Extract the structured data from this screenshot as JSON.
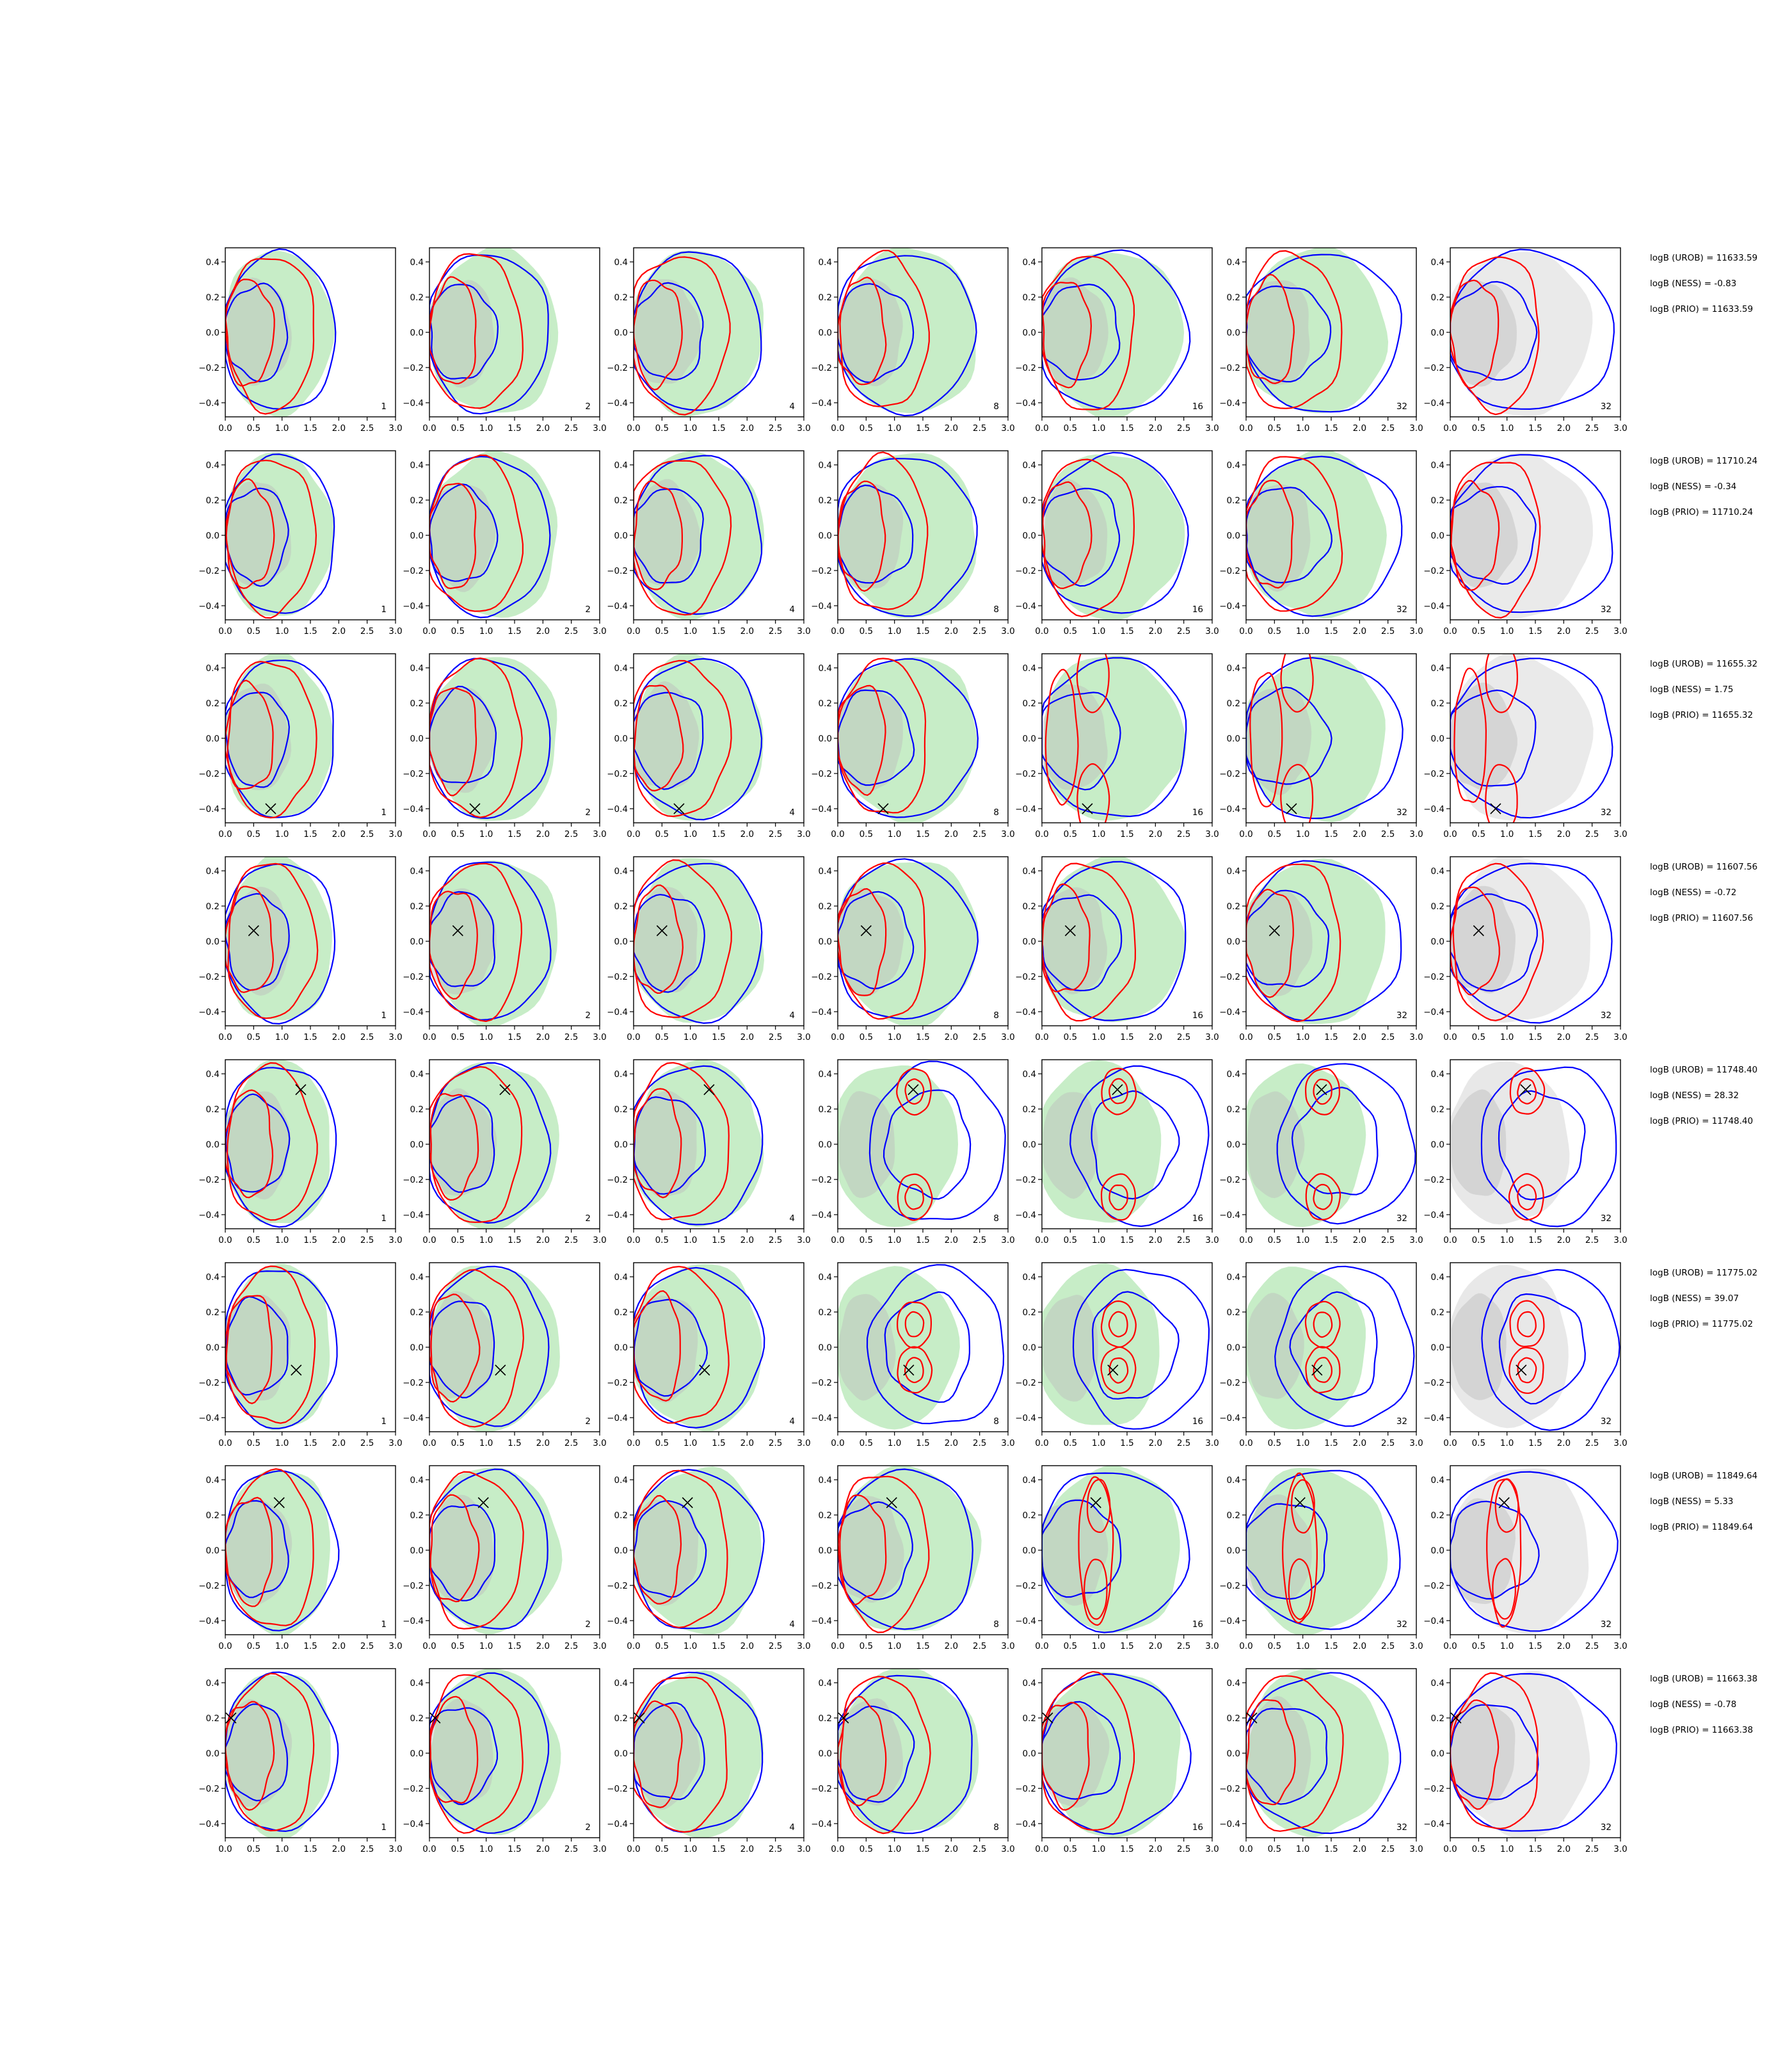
{
  "chart_data": {
    "type": "contour",
    "title": "",
    "layout": {
      "rows": 8,
      "cols": 7,
      "legend": "none"
    },
    "xlim": [
      0,
      3.0
    ],
    "ylim": [
      -0.48,
      0.48
    ],
    "xticks": [
      "0.0",
      "0.5",
      "1.0",
      "1.5",
      "2.0",
      "2.5",
      "3.0"
    ],
    "yticks": [
      "0.4",
      "0.2",
      "0.0",
      "−0.2",
      "−0.4"
    ],
    "panel_labels": [
      "1",
      "2",
      "4",
      "8",
      "16",
      "32",
      "32"
    ],
    "colors": {
      "red": "#ff0000",
      "blue": "#0000ff",
      "green_fill": "#c4ecc4",
      "gray_fill": "#d9d9d9",
      "marker": "#000000"
    },
    "rows": [
      {
        "marker": null,
        "stats": [
          "logB (UROB) = 11633.59",
          "logB (NESS) = -0.83",
          "logB (PRIO) = 11633.59"
        ]
      },
      {
        "marker": null,
        "stats": [
          "logB (UROB) = 11710.24",
          "logB (NESS) = -0.34",
          "logB (PRIO) = 11710.24"
        ]
      },
      {
        "marker": [
          0.8,
          -0.4
        ],
        "stats": [
          "logB (UROB) = 11655.32",
          "logB (NESS) = 1.75",
          "logB (PRIO) = 11655.32"
        ]
      },
      {
        "marker": [
          0.5,
          0.06
        ],
        "stats": [
          "logB (UROB) = 11607.56",
          "logB (NESS) = -0.72",
          "logB (PRIO) = 11607.56"
        ]
      },
      {
        "marker": [
          1.33,
          0.31
        ],
        "stats": [
          "logB (UROB) = 11748.40",
          "logB (NESS) = 28.32",
          "logB (PRIO) = 11748.40"
        ]
      },
      {
        "marker": [
          1.25,
          -0.13
        ],
        "stats": [
          "logB (UROB) = 11775.02",
          "logB (NESS) = 39.07",
          "logB (PRIO) = 11775.02"
        ]
      },
      {
        "marker": [
          0.95,
          0.27
        ],
        "stats": [
          "logB (UROB) = 11849.64",
          "logB (NESS) = 5.33",
          "logB (PRIO) = 11849.64"
        ]
      },
      {
        "marker": [
          0.1,
          0.2
        ],
        "stats": [
          "logB (UROB) = 11663.38",
          "logB (NESS) = -0.78",
          "logB (PRIO) = 11663.38"
        ]
      }
    ]
  }
}
